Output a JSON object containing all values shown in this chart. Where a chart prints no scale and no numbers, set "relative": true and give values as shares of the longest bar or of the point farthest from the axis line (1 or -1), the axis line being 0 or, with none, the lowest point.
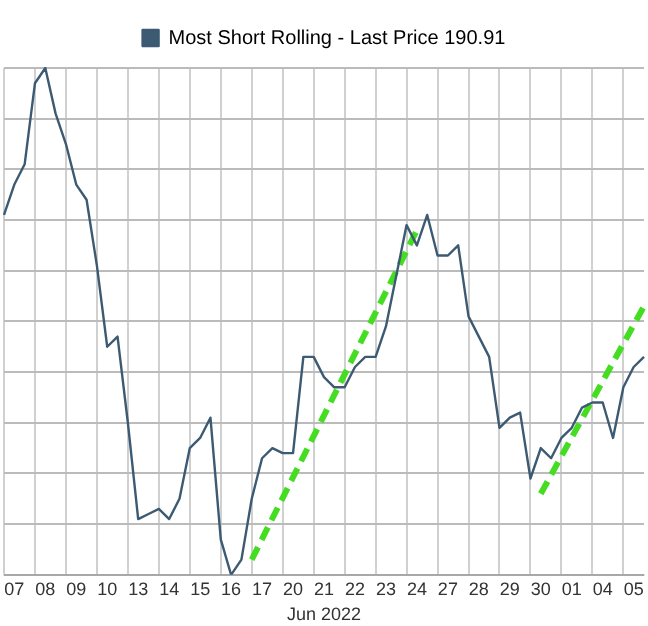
{
  "chart_data": {
    "type": "line",
    "relative": true,
    "xlabel": "Jun 2022",
    "grid": true,
    "legend": "top",
    "marker": "none",
    "categories": [
      null,
      "07",
      null,
      null,
      "08",
      null,
      null,
      "09",
      null,
      null,
      "10",
      null,
      null,
      "13",
      null,
      null,
      "14",
      null,
      null,
      "15",
      null,
      null,
      "16",
      null,
      null,
      "17",
      null,
      null,
      "20",
      null,
      null,
      "21",
      null,
      null,
      "22",
      null,
      null,
      "23",
      null,
      null,
      "24",
      null,
      null,
      "27",
      null,
      null,
      "28",
      null,
      null,
      "29",
      null,
      null,
      "30",
      null,
      null,
      "01",
      null,
      null,
      "04",
      null,
      null,
      "05",
      null
    ],
    "series": [
      {
        "name": "Most Short Rolling - Last Price 190.91",
        "color": "#3d5a73",
        "line_style": "solid",
        "values": [
          0.71,
          0.77,
          0.81,
          0.97,
          1,
          0.91,
          0.85,
          0.77,
          0.74,
          0.61,
          0.45,
          0.47,
          0.3,
          0.11,
          0.12,
          0.13,
          0.11,
          0.15,
          0.25,
          0.27,
          0.31,
          0.07,
          0,
          0.03,
          0.15,
          0.23,
          0.25,
          0.24,
          0.24,
          0.43,
          0.43,
          0.39,
          0.37,
          0.37,
          0.41,
          0.43,
          0.43,
          0.49,
          0.59,
          0.69,
          0.65,
          0.71,
          0.63,
          0.63,
          0.65,
          0.51,
          0.47,
          0.43,
          0.29,
          0.31,
          0.32,
          0.19,
          0.25,
          0.23,
          0.27,
          0.29,
          0.33,
          0.34,
          0.34,
          0.27,
          0.37,
          0.41,
          0.43
        ]
      },
      {
        "color": "#44dd22",
        "line_style": "dashed",
        "values": [
          null,
          null,
          null,
          null,
          null,
          null,
          null,
          null,
          null,
          null,
          null,
          null,
          null,
          null,
          null,
          null,
          null,
          null,
          null,
          null,
          null,
          null,
          null,
          null,
          0.03,
          null,
          null,
          null,
          null,
          null,
          null,
          null,
          null,
          null,
          null,
          null,
          null,
          null,
          null,
          null,
          0.68,
          null,
          null,
          null,
          null,
          null,
          null,
          null,
          null,
          null,
          null,
          null,
          null,
          null,
          null,
          null,
          null,
          null,
          null,
          null,
          null,
          null,
          null
        ]
      },
      {
        "color": "#44dd22",
        "line_style": "dashed",
        "values": [
          null,
          null,
          null,
          null,
          null,
          null,
          null,
          null,
          null,
          null,
          null,
          null,
          null,
          null,
          null,
          null,
          null,
          null,
          null,
          null,
          null,
          null,
          null,
          null,
          null,
          null,
          null,
          null,
          null,
          null,
          null,
          null,
          null,
          null,
          null,
          null,
          null,
          null,
          null,
          null,
          null,
          null,
          null,
          null,
          null,
          null,
          null,
          null,
          null,
          null,
          null,
          null,
          0.16,
          null,
          null,
          null,
          null,
          null,
          null,
          null,
          null,
          null,
          0.53
        ]
      }
    ]
  }
}
